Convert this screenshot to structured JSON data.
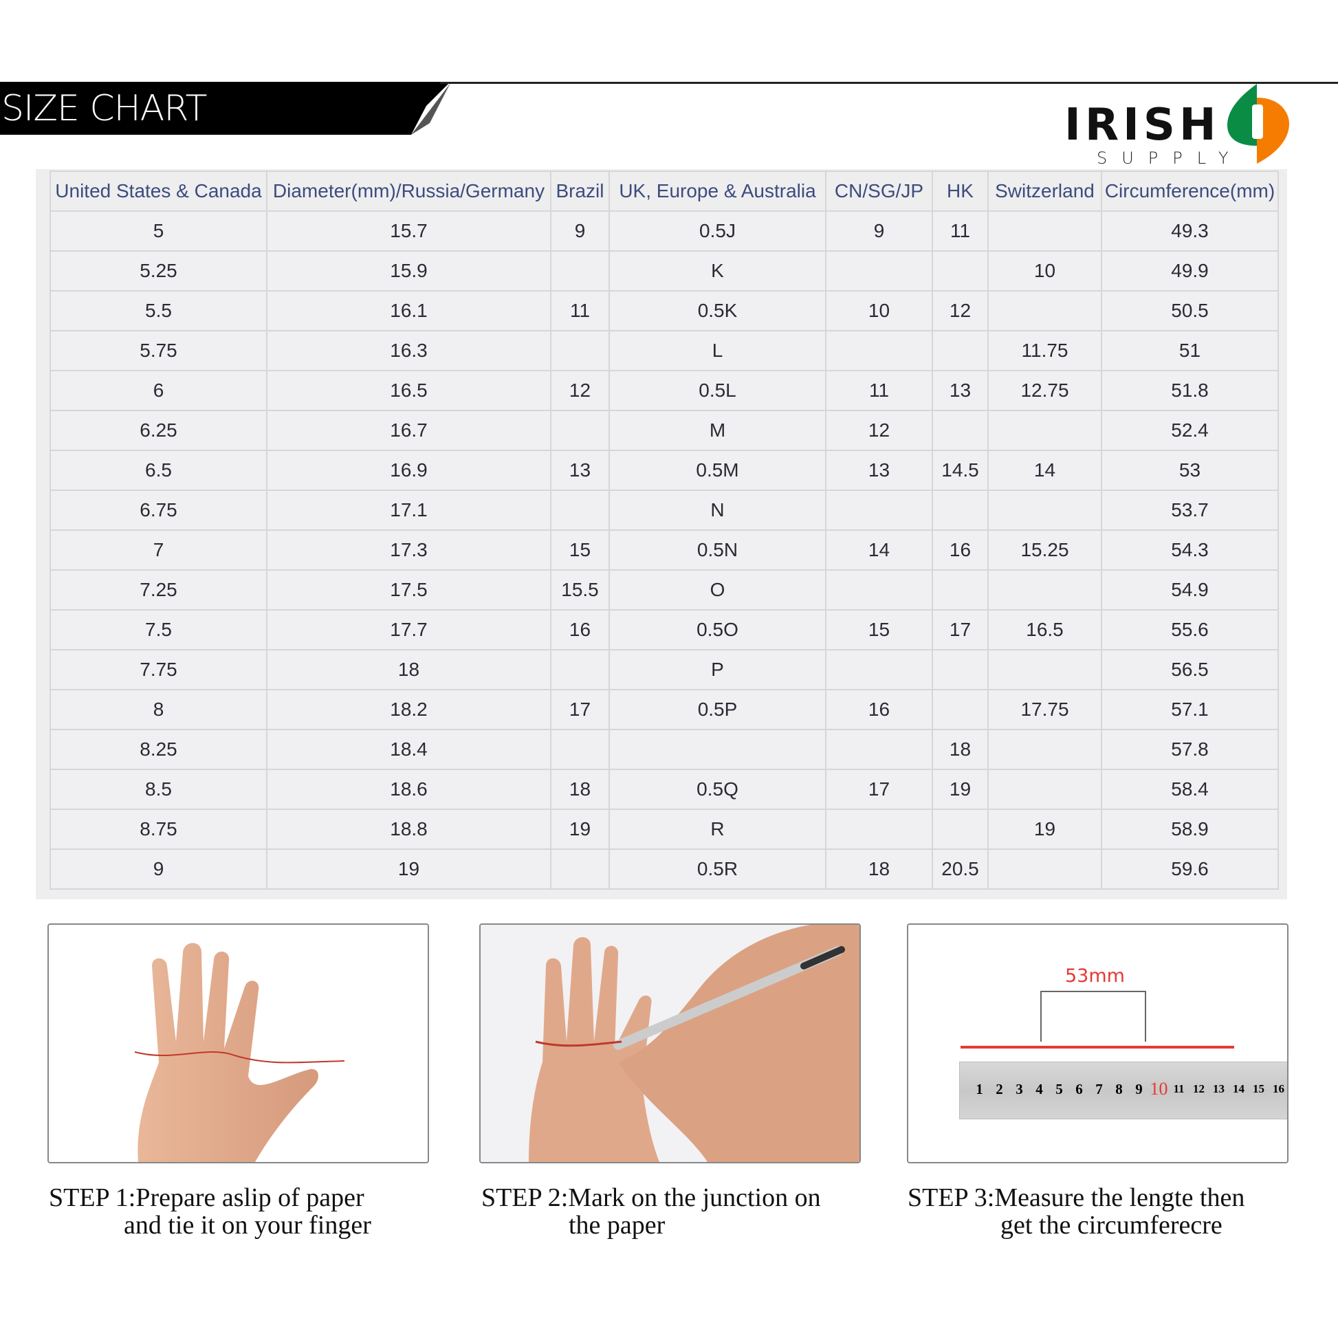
{
  "header": {
    "title": "SIZE CHART",
    "logo": {
      "word": "IRISH",
      "sub": "SUPPLY",
      "colors": {
        "green": "#0a8c45",
        "orange": "#f57c00"
      }
    }
  },
  "table": {
    "columns": [
      "United States & Canada",
      "Diameter(mm)/Russia/Germany",
      "Brazil",
      "UK, Europe & Australia",
      "CN/SG/JP",
      "HK",
      "Switzerland",
      "Circumference(mm)"
    ],
    "rows": [
      [
        "5",
        "15.7",
        "9",
        "0.5J",
        "9",
        "11",
        "",
        "49.3"
      ],
      [
        "5.25",
        "15.9",
        "",
        "K",
        "",
        "",
        "10",
        "49.9"
      ],
      [
        "5.5",
        "16.1",
        "11",
        "0.5K",
        "10",
        "12",
        "",
        "50.5"
      ],
      [
        "5.75",
        "16.3",
        "",
        "L",
        "",
        "",
        "11.75",
        "51"
      ],
      [
        "6",
        "16.5",
        "12",
        "0.5L",
        "11",
        "13",
        "12.75",
        "51.8"
      ],
      [
        "6.25",
        "16.7",
        "",
        "M",
        "12",
        "",
        "",
        "52.4"
      ],
      [
        "6.5",
        "16.9",
        "13",
        "0.5M",
        "13",
        "14.5",
        "14",
        "53"
      ],
      [
        "6.75",
        "17.1",
        "",
        "N",
        "",
        "",
        "",
        "53.7"
      ],
      [
        "7",
        "17.3",
        "15",
        "0.5N",
        "14",
        "16",
        "15.25",
        "54.3"
      ],
      [
        "7.25",
        "17.5",
        "15.5",
        "O",
        "",
        "",
        "",
        "54.9"
      ],
      [
        "7.5",
        "17.7",
        "16",
        "0.5O",
        "15",
        "17",
        "16.5",
        "55.6"
      ],
      [
        "7.75",
        "18",
        "",
        "P",
        "",
        "",
        "",
        "56.5"
      ],
      [
        "8",
        "18.2",
        "17",
        "0.5P",
        "16",
        "",
        "17.75",
        "57.1"
      ],
      [
        "8.25",
        "18.4",
        "",
        "",
        "",
        "18",
        "",
        "57.8"
      ],
      [
        "8.5",
        "18.6",
        "18",
        "0.5Q",
        "17",
        "19",
        "",
        "58.4"
      ],
      [
        "8.75",
        "18.8",
        "19",
        "R",
        "",
        "",
        "19",
        "58.9"
      ],
      [
        "9",
        "19",
        "",
        "0.5R",
        "18",
        "20.5",
        "",
        "59.6"
      ]
    ]
  },
  "steps": [
    {
      "line1": "STEP 1:Prepare aslip of paper",
      "line2": "and tie it on your finger"
    },
    {
      "line1": "STEP 2:Mark on the junction on",
      "line2": "the paper"
    },
    {
      "line1": "STEP 3:Measure the lengte then",
      "line2": "get the circumferecre"
    }
  ],
  "ruler": {
    "measurement": "53mm",
    "numbers": [
      "1",
      "2",
      "3",
      "4",
      "5",
      "6",
      "7",
      "8",
      "9",
      "10",
      "11",
      "12",
      "13",
      "14",
      "15",
      "16"
    ],
    "accent": "#e53935"
  }
}
